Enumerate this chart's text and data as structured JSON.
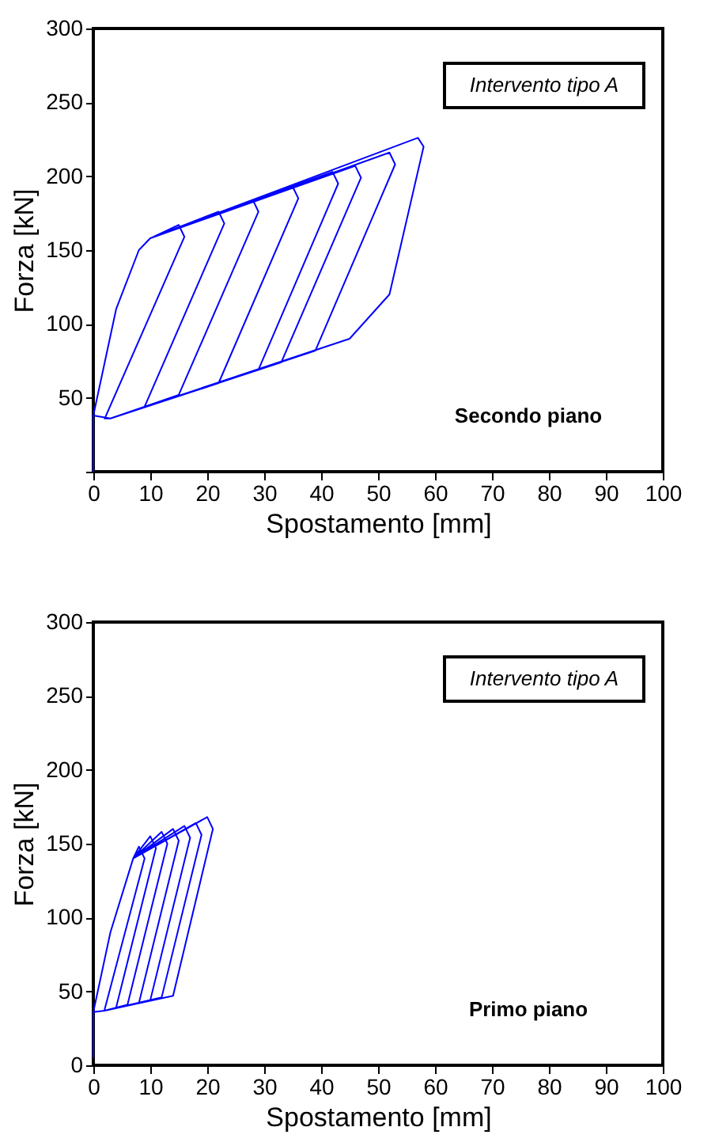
{
  "chart_data": [
    {
      "type": "line",
      "xlabel": "Spostamento [mm]",
      "ylabel": "Forza [kN]",
      "xlim": [
        0,
        100
      ],
      "ylim": [
        0,
        300
      ],
      "xticks": [
        0,
        10,
        20,
        30,
        40,
        50,
        60,
        70,
        80,
        90,
        100
      ],
      "yticks": [
        {
          "value": 0,
          "label": null
        },
        50,
        100,
        150,
        200,
        250,
        300
      ],
      "grid": false,
      "marker": "none",
      "line_style": "solid",
      "annotations": [
        "Intervento tipo A",
        "Secondo piano"
      ],
      "series": [
        {
          "color": "#0000ff",
          "x": [
            0,
            0,
            4,
            8,
            10,
            15,
            16,
            2,
            3,
            0,
            4,
            8,
            10,
            22,
            23,
            9,
            3,
            0,
            4,
            8,
            10,
            28,
            29,
            15,
            3,
            0,
            4,
            8,
            10,
            35,
            36,
            22,
            3,
            0,
            4,
            8,
            10,
            42,
            43,
            29,
            3,
            0,
            4,
            8,
            10,
            46,
            47,
            33,
            3,
            0,
            4,
            8,
            10,
            52,
            53,
            39,
            3,
            0,
            4,
            8,
            10,
            57,
            58,
            52,
            45,
            3,
            0
          ],
          "values": [
            0,
            38,
            110,
            150,
            158,
            167,
            159,
            36,
            36,
            38,
            110,
            150,
            158,
            176,
            168,
            44,
            36,
            38,
            110,
            150,
            158,
            184,
            176,
            52,
            36,
            38,
            110,
            150,
            158,
            193,
            185,
            60,
            36,
            38,
            110,
            150,
            158,
            203,
            195,
            69,
            36,
            38,
            110,
            150,
            158,
            207,
            199,
            74,
            36,
            38,
            110,
            150,
            158,
            216,
            208,
            82,
            36,
            38,
            110,
            150,
            158,
            226,
            220,
            120,
            90,
            36,
            38
          ]
        }
      ]
    },
    {
      "type": "line",
      "xlabel": "Spostamento [mm]",
      "ylabel": "Forza [kN]",
      "xlim": [
        0,
        100
      ],
      "ylim": [
        0,
        300
      ],
      "xticks": [
        0,
        10,
        20,
        30,
        40,
        50,
        60,
        70,
        80,
        90,
        100
      ],
      "yticks": [
        0,
        50,
        100,
        150,
        200,
        250,
        300
      ],
      "grid": false,
      "marker": "none",
      "line_style": "solid",
      "annotations": [
        "Intervento tipo A",
        "Primo piano"
      ],
      "series": [
        {
          "color": "#0000ff",
          "x": [
            0,
            0,
            3,
            7,
            8,
            9,
            2,
            2,
            0,
            3,
            7,
            10,
            11,
            4,
            2,
            0,
            3,
            7,
            12,
            13,
            6,
            2,
            0,
            3,
            7,
            14,
            15,
            8,
            2,
            0,
            3,
            7,
            16,
            17,
            10,
            2,
            0,
            3,
            7,
            18,
            19,
            12,
            2,
            0,
            3,
            7,
            20,
            21,
            14,
            2,
            0
          ],
          "values": [
            5,
            36,
            90,
            140,
            148,
            140,
            38,
            37,
            36,
            90,
            140,
            155,
            147,
            39,
            37,
            36,
            90,
            140,
            158,
            150,
            41,
            37,
            36,
            90,
            140,
            160,
            152,
            42,
            37,
            36,
            90,
            140,
            162,
            154,
            44,
            37,
            36,
            90,
            140,
            164,
            156,
            46,
            37,
            36,
            90,
            140,
            168,
            160,
            47,
            37,
            36
          ]
        }
      ]
    }
  ]
}
